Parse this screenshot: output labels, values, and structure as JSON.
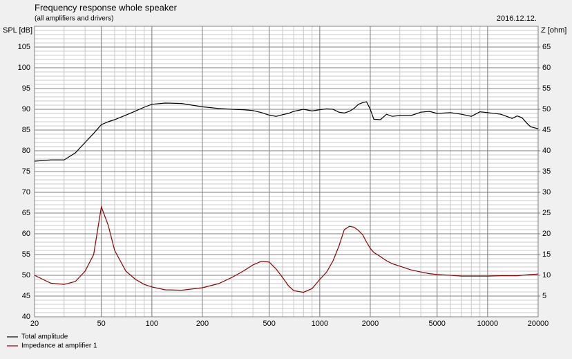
{
  "chart_data": {
    "type": "line",
    "title": "Frequency response whole speaker",
    "subtitle": "(all amplifiers and drivers)",
    "date": "2016.12.12.",
    "ylabel": "SPL [dB]",
    "y2label": "Z [ohm]",
    "xscale": "log",
    "grid": true,
    "minor_grid": true,
    "legend": "bottom-left",
    "x": [
      20,
      25,
      30,
      35,
      40,
      45,
      50,
      55,
      60,
      70,
      80,
      90,
      100,
      120,
      150,
      200,
      250,
      300,
      350,
      400,
      450,
      500,
      550,
      600,
      650,
      700,
      800,
      900,
      1000,
      1100,
      1200,
      1300,
      1400,
      1500,
      1600,
      1700,
      1800,
      1900,
      2000,
      2100,
      2300,
      2500,
      2700,
      3000,
      3500,
      4000,
      4500,
      5000,
      6000,
      7000,
      8000,
      9000,
      10000,
      12000,
      14000,
      15000,
      16000,
      17000,
      18000,
      20000
    ],
    "series": [
      {
        "name": "Total amplitude",
        "color": "#000000",
        "axis": "y",
        "values": [
          77.5,
          77.8,
          77.8,
          79.5,
          82,
          84.2,
          86.3,
          87,
          87.5,
          88.6,
          89.6,
          90.5,
          91.2,
          91.5,
          91.4,
          90.6,
          90.2,
          90,
          89.9,
          89.7,
          89.2,
          88.6,
          88.3,
          88.7,
          89,
          89.5,
          90,
          89.6,
          89.9,
          90.1,
          90,
          89.3,
          89.1,
          89.5,
          90.2,
          91.2,
          91.6,
          91.8,
          90,
          87.6,
          87.5,
          88.8,
          88.3,
          88.5,
          88.5,
          89.3,
          89.5,
          89,
          89.2,
          88.8,
          88.3,
          89.4,
          89.2,
          88.8,
          87.8,
          88.4,
          88,
          86.8,
          85.8,
          85.3
        ]
      },
      {
        "name": "Impedance at amplifier 1",
        "color": "#8b0000",
        "axis": "y2",
        "values": [
          10,
          8.1,
          7.8,
          8.5,
          11,
          15,
          26.5,
          22,
          16,
          11,
          9,
          7.8,
          7.2,
          6.5,
          6.4,
          7,
          8,
          9.5,
          11,
          12.5,
          13.4,
          13.2,
          11.5,
          9.5,
          7.5,
          6.3,
          5.9,
          6.8,
          9,
          10.8,
          13.5,
          17,
          21,
          21.8,
          21.6,
          20.8,
          19.8,
          18,
          16.5,
          15.5,
          14.5,
          13.5,
          12.8,
          12.2,
          11.3,
          10.8,
          10.4,
          10.2,
          10,
          9.8,
          9.8,
          9.8,
          9.8,
          9.9,
          9.9,
          9.9,
          10,
          10.1,
          10.2,
          10.3
        ]
      }
    ],
    "xlim": [
      20,
      20000
    ],
    "xticks": [
      20,
      50,
      100,
      200,
      500,
      1000,
      2000,
      5000,
      10000,
      20000
    ],
    "ylim": [
      40,
      110
    ],
    "yticks": [
      40,
      45,
      50,
      55,
      60,
      65,
      70,
      75,
      80,
      85,
      90,
      95,
      100,
      105
    ],
    "y2lim": [
      0,
      70
    ],
    "y2ticks": [
      5,
      10,
      15,
      20,
      25,
      30,
      35,
      40,
      45,
      50,
      55,
      60,
      65
    ]
  }
}
